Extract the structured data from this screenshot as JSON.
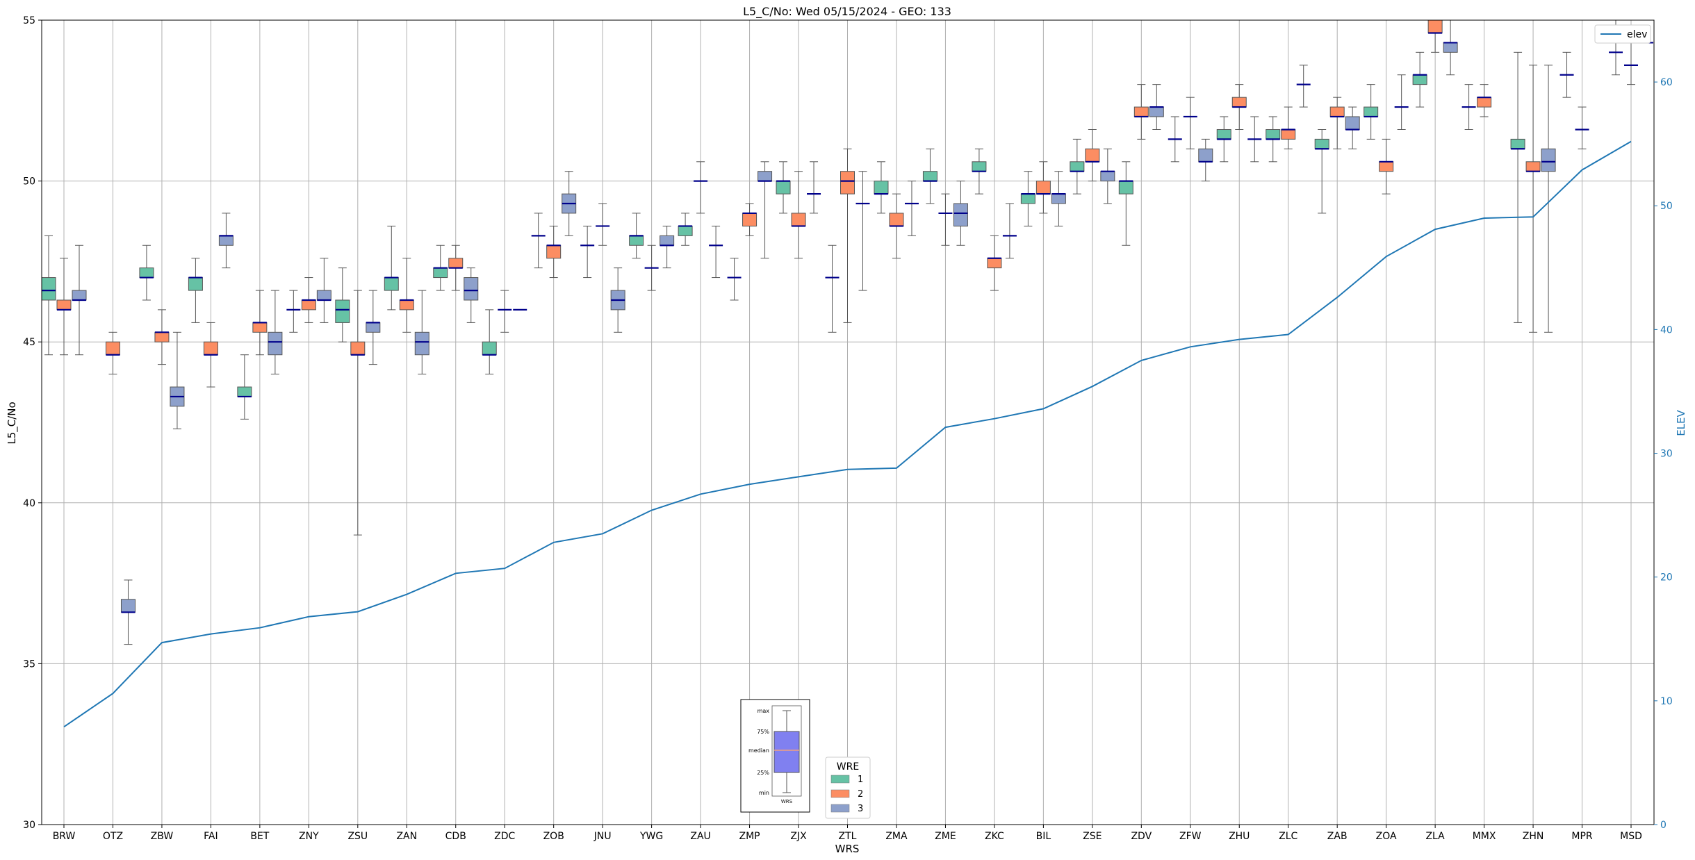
{
  "chart_data": {
    "type": "box",
    "title": "L5_C/No: Wed 05/15/2024 - GEO: 133",
    "xlabel": "WRS",
    "ylabel": "L5_C/No",
    "y2label": "ELEV",
    "ylim": [
      30,
      55
    ],
    "y2lim": [
      0,
      65
    ],
    "yticks": [
      30,
      35,
      40,
      45,
      50,
      55
    ],
    "y2ticks": [
      0,
      10,
      20,
      30,
      40,
      50,
      60
    ],
    "grid": true,
    "categories": [
      "BRW",
      "OTZ",
      "ZBW",
      "FAI",
      "BET",
      "ZNY",
      "ZSU",
      "ZAN",
      "CDB",
      "ZDC",
      "ZOB",
      "JNU",
      "YWG",
      "ZAU",
      "ZMP",
      "ZJX",
      "ZTL",
      "ZMA",
      "ZME",
      "ZKC",
      "BIL",
      "ZSE",
      "ZDV",
      "ZFW",
      "ZHU",
      "ZLC",
      "ZAB",
      "ZOA",
      "ZLA",
      "MMX",
      "ZHN",
      "MPR",
      "MSD"
    ],
    "legend_title": "WRE",
    "series": [
      {
        "name": "1",
        "color": "#66c2a5",
        "boxes": [
          {
            "cat": "BRW",
            "min": 44.6,
            "q1": 46.3,
            "median": 46.6,
            "q3": 47.0,
            "max": 48.3
          },
          {
            "cat": "ZBW",
            "min": 46.3,
            "q1": 47.0,
            "median": 47.0,
            "q3": 47.3,
            "max": 48.0
          },
          {
            "cat": "FAI",
            "min": 45.6,
            "q1": 46.6,
            "median": 47.0,
            "q3": 47.0,
            "max": 47.6
          },
          {
            "cat": "BET",
            "min": 42.6,
            "q1": 43.3,
            "median": 43.3,
            "q3": 43.6,
            "max": 44.6
          },
          {
            "cat": "ZNY",
            "min": 45.3,
            "q1": 46.0,
            "median": 46.0,
            "q3": 46.0,
            "max": 46.6
          },
          {
            "cat": "ZSU",
            "min": 45.0,
            "q1": 45.6,
            "median": 46.0,
            "q3": 46.3,
            "max": 47.3
          },
          {
            "cat": "ZAN",
            "min": 46.0,
            "q1": 46.6,
            "median": 47.0,
            "q3": 47.0,
            "max": 48.6
          },
          {
            "cat": "CDB",
            "min": 46.6,
            "q1": 47.0,
            "median": 47.3,
            "q3": 47.3,
            "max": 48.0
          },
          {
            "cat": "ZDC",
            "min": 44.0,
            "q1": 44.6,
            "median": 44.6,
            "q3": 45.0,
            "max": 46.0
          },
          {
            "cat": "ZOB",
            "min": 47.3,
            "q1": 48.3,
            "median": 48.3,
            "q3": 48.3,
            "max": 49.0
          },
          {
            "cat": "JNU",
            "min": 47.0,
            "q1": 48.0,
            "median": 48.0,
            "q3": 48.0,
            "max": 48.6
          },
          {
            "cat": "YWG",
            "min": 47.6,
            "q1": 48.0,
            "median": 48.3,
            "q3": 48.3,
            "max": 49.0
          },
          {
            "cat": "ZAU",
            "min": 48.0,
            "q1": 48.3,
            "median": 48.6,
            "q3": 48.6,
            "max": 49.0
          },
          {
            "cat": "ZMP",
            "min": 46.3,
            "q1": 47.0,
            "median": 47.0,
            "q3": 47.0,
            "max": 47.6
          },
          {
            "cat": "ZJX",
            "min": 49.0,
            "q1": 49.6,
            "median": 50.0,
            "q3": 50.0,
            "max": 50.6
          },
          {
            "cat": "ZTL",
            "min": 45.3,
            "q1": 47.0,
            "median": 47.0,
            "q3": 47.0,
            "max": 48.0
          },
          {
            "cat": "ZMA",
            "min": 49.0,
            "q1": 49.6,
            "median": 49.6,
            "q3": 50.0,
            "max": 50.6
          },
          {
            "cat": "ZME",
            "min": 49.3,
            "q1": 50.0,
            "median": 50.0,
            "q3": 50.3,
            "max": 51.0
          },
          {
            "cat": "ZKC",
            "min": 49.6,
            "q1": 50.3,
            "median": 50.3,
            "q3": 50.6,
            "max": 51.0
          },
          {
            "cat": "BIL",
            "min": 48.6,
            "q1": 49.3,
            "median": 49.6,
            "q3": 49.6,
            "max": 50.3
          },
          {
            "cat": "ZSE",
            "min": 49.6,
            "q1": 50.3,
            "median": 50.3,
            "q3": 50.6,
            "max": 51.3
          },
          {
            "cat": "ZDV",
            "min": 48.0,
            "q1": 49.6,
            "median": 50.0,
            "q3": 50.0,
            "max": 50.6
          },
          {
            "cat": "ZFW",
            "min": 50.6,
            "q1": 51.3,
            "median": 51.3,
            "q3": 51.3,
            "max": 52.0
          },
          {
            "cat": "ZHU",
            "min": 50.6,
            "q1": 51.3,
            "median": 51.3,
            "q3": 51.6,
            "max": 52.0
          },
          {
            "cat": "ZLC",
            "min": 50.6,
            "q1": 51.3,
            "median": 51.3,
            "q3": 51.6,
            "max": 52.0
          },
          {
            "cat": "ZAB",
            "min": 49.0,
            "q1": 51.0,
            "median": 51.0,
            "q3": 51.3,
            "max": 51.6
          },
          {
            "cat": "ZOA",
            "min": 51.3,
            "q1": 52.0,
            "median": 52.0,
            "q3": 52.3,
            "max": 53.0
          },
          {
            "cat": "ZLA",
            "min": 52.3,
            "q1": 53.0,
            "median": 53.3,
            "q3": 53.3,
            "max": 54.0
          },
          {
            "cat": "MMX",
            "min": 51.6,
            "q1": 52.3,
            "median": 52.3,
            "q3": 52.3,
            "max": 53.0
          },
          {
            "cat": "ZHN",
            "min": 45.6,
            "q1": 51.0,
            "median": 51.0,
            "q3": 51.3,
            "max": 54.0
          },
          {
            "cat": "MPR",
            "min": 52.6,
            "q1": 53.3,
            "median": 53.3,
            "q3": 53.3,
            "max": 54.0
          },
          {
            "cat": "MSD",
            "min": 53.3,
            "q1": 54.0,
            "median": 54.0,
            "q3": 54.0,
            "max": 55.0
          }
        ]
      },
      {
        "name": "2",
        "color": "#fc8d62",
        "boxes": [
          {
            "cat": "BRW",
            "min": 44.6,
            "q1": 46.0,
            "median": 46.0,
            "q3": 46.3,
            "max": 47.6
          },
          {
            "cat": "OTZ",
            "min": 44.0,
            "q1": 44.6,
            "median": 44.6,
            "q3": 45.0,
            "max": 45.3
          },
          {
            "cat": "ZBW",
            "min": 44.3,
            "q1": 45.0,
            "median": 45.3,
            "q3": 45.3,
            "max": 46.0
          },
          {
            "cat": "FAI",
            "min": 43.6,
            "q1": 44.6,
            "median": 44.6,
            "q3": 45.0,
            "max": 45.6
          },
          {
            "cat": "BET",
            "min": 44.6,
            "q1": 45.3,
            "median": 45.6,
            "q3": 45.6,
            "max": 46.6
          },
          {
            "cat": "ZNY",
            "min": 45.6,
            "q1": 46.0,
            "median": 46.3,
            "q3": 46.3,
            "max": 47.0
          },
          {
            "cat": "ZSU",
            "min": 39.0,
            "q1": 44.6,
            "median": 44.6,
            "q3": 45.0,
            "max": 46.6
          },
          {
            "cat": "ZAN",
            "min": 45.3,
            "q1": 46.0,
            "median": 46.3,
            "q3": 46.3,
            "max": 47.6
          },
          {
            "cat": "CDB",
            "min": 46.6,
            "q1": 47.3,
            "median": 47.3,
            "q3": 47.6,
            "max": 48.0
          },
          {
            "cat": "ZDC",
            "min": 45.3,
            "q1": 46.0,
            "median": 46.0,
            "q3": 46.0,
            "max": 46.6
          },
          {
            "cat": "ZOB",
            "min": 47.0,
            "q1": 47.6,
            "median": 48.0,
            "q3": 48.0,
            "max": 48.6
          },
          {
            "cat": "JNU",
            "min": 48.0,
            "q1": 48.6,
            "median": 48.6,
            "q3": 48.6,
            "max": 49.3
          },
          {
            "cat": "YWG",
            "min": 46.6,
            "q1": 47.3,
            "median": 47.3,
            "q3": 47.3,
            "max": 48.0
          },
          {
            "cat": "ZAU",
            "min": 49.0,
            "q1": 50.0,
            "median": 50.0,
            "q3": 50.0,
            "max": 50.6
          },
          {
            "cat": "ZMP",
            "min": 48.3,
            "q1": 48.6,
            "median": 49.0,
            "q3": 49.0,
            "max": 49.3
          },
          {
            "cat": "ZJX",
            "min": 47.6,
            "q1": 48.6,
            "median": 48.6,
            "q3": 49.0,
            "max": 50.3
          },
          {
            "cat": "ZTL",
            "min": 45.6,
            "q1": 49.6,
            "median": 50.0,
            "q3": 50.3,
            "max": 51.0
          },
          {
            "cat": "ZMA",
            "min": 47.6,
            "q1": 48.6,
            "median": 48.6,
            "q3": 49.0,
            "max": 49.6
          },
          {
            "cat": "ZME",
            "min": 48.0,
            "q1": 49.0,
            "median": 49.0,
            "q3": 49.0,
            "max": 49.6
          },
          {
            "cat": "ZKC",
            "min": 46.6,
            "q1": 47.3,
            "median": 47.6,
            "q3": 47.6,
            "max": 48.3
          },
          {
            "cat": "BIL",
            "min": 49.0,
            "q1": 49.6,
            "median": 49.6,
            "q3": 50.0,
            "max": 50.6
          },
          {
            "cat": "ZSE",
            "min": 50.0,
            "q1": 50.6,
            "median": 50.6,
            "q3": 51.0,
            "max": 51.6
          },
          {
            "cat": "ZDV",
            "min": 51.3,
            "q1": 52.0,
            "median": 52.0,
            "q3": 52.3,
            "max": 53.0
          },
          {
            "cat": "ZFW",
            "min": 51.0,
            "q1": 52.0,
            "median": 52.0,
            "q3": 52.0,
            "max": 52.6
          },
          {
            "cat": "ZHU",
            "min": 51.6,
            "q1": 52.3,
            "median": 52.3,
            "q3": 52.6,
            "max": 53.0
          },
          {
            "cat": "ZLC",
            "min": 51.0,
            "q1": 51.3,
            "median": 51.6,
            "q3": 51.6,
            "max": 52.3
          },
          {
            "cat": "ZAB",
            "min": 51.0,
            "q1": 52.0,
            "median": 52.0,
            "q3": 52.3,
            "max": 52.6
          },
          {
            "cat": "ZOA",
            "min": 49.6,
            "q1": 50.3,
            "median": 50.6,
            "q3": 50.6,
            "max": 51.3
          },
          {
            "cat": "ZLA",
            "min": 54.0,
            "q1": 54.6,
            "median": 54.6,
            "q3": 55.0,
            "max": 55.0
          },
          {
            "cat": "MMX",
            "min": 52.0,
            "q1": 52.3,
            "median": 52.6,
            "q3": 52.6,
            "max": 53.0
          },
          {
            "cat": "ZHN",
            "min": 45.3,
            "q1": 50.3,
            "median": 50.3,
            "q3": 50.6,
            "max": 53.6
          },
          {
            "cat": "MPR",
            "min": 51.0,
            "q1": 51.6,
            "median": 51.6,
            "q3": 51.6,
            "max": 52.3
          },
          {
            "cat": "MSD",
            "min": 53.0,
            "q1": 53.6,
            "median": 53.6,
            "q3": 53.6,
            "max": 54.6
          }
        ]
      },
      {
        "name": "3",
        "color": "#8da0cb",
        "boxes": [
          {
            "cat": "BRW",
            "min": 44.6,
            "q1": 46.3,
            "median": 46.3,
            "q3": 46.6,
            "max": 48.0
          },
          {
            "cat": "OTZ",
            "min": 35.6,
            "q1": 36.6,
            "median": 36.6,
            "q3": 37.0,
            "max": 37.6
          },
          {
            "cat": "ZBW",
            "min": 42.3,
            "q1": 43.0,
            "median": 43.3,
            "q3": 43.6,
            "max": 45.3
          },
          {
            "cat": "FAI",
            "min": 47.3,
            "q1": 48.0,
            "median": 48.3,
            "q3": 48.3,
            "max": 49.0
          },
          {
            "cat": "BET",
            "min": 44.0,
            "q1": 44.6,
            "median": 45.0,
            "q3": 45.3,
            "max": 46.6
          },
          {
            "cat": "ZNY",
            "min": 45.6,
            "q1": 46.3,
            "median": 46.3,
            "q3": 46.6,
            "max": 47.6
          },
          {
            "cat": "ZSU",
            "min": 44.3,
            "q1": 45.3,
            "median": 45.6,
            "q3": 45.6,
            "max": 46.6
          },
          {
            "cat": "ZAN",
            "min": 44.0,
            "q1": 44.6,
            "median": 45.0,
            "q3": 45.3,
            "max": 46.6
          },
          {
            "cat": "CDB",
            "min": 45.6,
            "q1": 46.3,
            "median": 46.6,
            "q3": 47.0,
            "max": 47.3
          },
          {
            "cat": "ZDC",
            "min": 46.0,
            "q1": 46.0,
            "median": 46.0,
            "q3": 46.0,
            "max": 46.0
          },
          {
            "cat": "ZOB",
            "min": 48.3,
            "q1": 49.0,
            "median": 49.3,
            "q3": 49.6,
            "max": 50.3
          },
          {
            "cat": "JNU",
            "min": 45.3,
            "q1": 46.0,
            "median": 46.3,
            "q3": 46.6,
            "max": 47.3
          },
          {
            "cat": "YWG",
            "min": 47.3,
            "q1": 48.0,
            "median": 48.0,
            "q3": 48.3,
            "max": 48.6
          },
          {
            "cat": "ZAU",
            "min": 47.0,
            "q1": 48.0,
            "median": 48.0,
            "q3": 48.0,
            "max": 48.6
          },
          {
            "cat": "ZMP",
            "min": 47.6,
            "q1": 50.0,
            "median": 50.0,
            "q3": 50.3,
            "max": 50.6
          },
          {
            "cat": "ZJX",
            "min": 49.0,
            "q1": 49.6,
            "median": 49.6,
            "q3": 49.6,
            "max": 50.6
          },
          {
            "cat": "ZTL",
            "min": 46.6,
            "q1": 49.3,
            "median": 49.3,
            "q3": 49.3,
            "max": 50.3
          },
          {
            "cat": "ZMA",
            "min": 48.3,
            "q1": 49.3,
            "median": 49.3,
            "q3": 49.3,
            "max": 50.0
          },
          {
            "cat": "ZME",
            "min": 48.0,
            "q1": 48.6,
            "median": 49.0,
            "q3": 49.3,
            "max": 50.0
          },
          {
            "cat": "ZKC",
            "min": 47.6,
            "q1": 48.3,
            "median": 48.3,
            "q3": 48.3,
            "max": 49.3
          },
          {
            "cat": "BIL",
            "min": 48.6,
            "q1": 49.3,
            "median": 49.6,
            "q3": 49.6,
            "max": 50.3
          },
          {
            "cat": "ZSE",
            "min": 49.3,
            "q1": 50.0,
            "median": 50.3,
            "q3": 50.3,
            "max": 51.0
          },
          {
            "cat": "ZDV",
            "min": 51.6,
            "q1": 52.0,
            "median": 52.3,
            "q3": 52.3,
            "max": 53.0
          },
          {
            "cat": "ZFW",
            "min": 50.0,
            "q1": 50.6,
            "median": 50.6,
            "q3": 51.0,
            "max": 51.3
          },
          {
            "cat": "ZHU",
            "min": 50.6,
            "q1": 51.3,
            "median": 51.3,
            "q3": 51.3,
            "max": 52.0
          },
          {
            "cat": "ZLC",
            "min": 52.3,
            "q1": 53.0,
            "median": 53.0,
            "q3": 53.0,
            "max": 53.6
          },
          {
            "cat": "ZAB",
            "min": 51.0,
            "q1": 51.6,
            "median": 51.6,
            "q3": 52.0,
            "max": 52.3
          },
          {
            "cat": "ZOA",
            "min": 51.6,
            "q1": 52.3,
            "median": 52.3,
            "q3": 52.3,
            "max": 53.3
          },
          {
            "cat": "ZLA",
            "min": 53.3,
            "q1": 54.0,
            "median": 54.3,
            "q3": 54.3,
            "max": 55.0
          },
          {
            "cat": "MMX",
            "min": null,
            "q1": null,
            "median": null,
            "q3": null,
            "max": null
          },
          {
            "cat": "ZHN",
            "min": 45.3,
            "q1": 50.3,
            "median": 50.6,
            "q3": 51.0,
            "max": 53.6
          },
          {
            "cat": "MPR",
            "min": null,
            "q1": null,
            "median": null,
            "q3": null,
            "max": null
          },
          {
            "cat": "MSD",
            "min": 54.3,
            "q1": 54.3,
            "median": 54.3,
            "q3": 54.3,
            "max": 54.3
          }
        ]
      }
    ],
    "elev": {
      "name": "elev",
      "color": "#1f77b4",
      "values": [
        7.9,
        10.6,
        14.7,
        15.4,
        15.9,
        16.8,
        17.2,
        18.6,
        20.3,
        20.7,
        22.8,
        23.5,
        25.4,
        26.7,
        27.5,
        28.1,
        28.7,
        28.8,
        32.1,
        32.8,
        33.6,
        35.4,
        37.5,
        38.6,
        39.2,
        39.6,
        42.6,
        45.9,
        48.1,
        49.0,
        49.1,
        52.9,
        55.2
      ]
    },
    "legend_inset": {
      "labels": [
        "max",
        "75%",
        "median",
        "25%",
        "min"
      ],
      "xlabel": "WRS"
    }
  }
}
